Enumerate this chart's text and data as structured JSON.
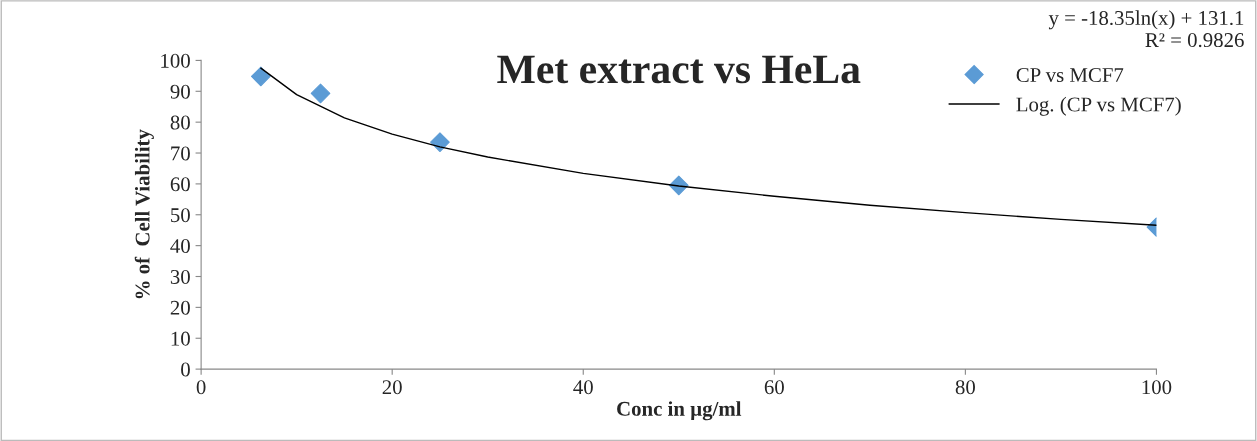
{
  "chart_data": {
    "type": "scatter",
    "title": "Met extract vs HeLa",
    "xlabel": "Conc in µg/ml",
    "ylabel": "% of  Cell Viability",
    "annotations": [
      "y = -18.35ln(x) + 131.1",
      "R² = 0.9826"
    ],
    "series": [
      {
        "name": "CP vs MCF7",
        "color": "#5b9bd5",
        "marker": "diamond",
        "x": [
          6.25,
          12.5,
          25,
          50,
          100
        ],
        "values": [
          94.8,
          89.3,
          73.5,
          59.5,
          46
        ]
      },
      {
        "name": "Log. (CP vs MCF7)",
        "type": "line",
        "color": "#000000",
        "marker": "none",
        "line_style": "solid",
        "x": [
          6.25,
          10,
          15,
          20,
          25,
          30,
          40,
          50,
          60,
          70,
          80,
          90,
          100
        ],
        "values": [
          97.5,
          88.9,
          81.4,
          76.1,
          72.0,
          68.7,
          63.4,
          59.3,
          56.0,
          53.1,
          50.7,
          48.5,
          46.6
        ]
      }
    ],
    "xlim": [
      0,
      100
    ],
    "xticks": [
      0,
      20,
      40,
      60,
      80,
      100
    ],
    "ylim": [
      0,
      100
    ],
    "yticks": [
      0,
      10,
      20,
      30,
      40,
      50,
      60,
      70,
      80,
      90,
      100
    ],
    "grid": false,
    "legend": "top right"
  }
}
